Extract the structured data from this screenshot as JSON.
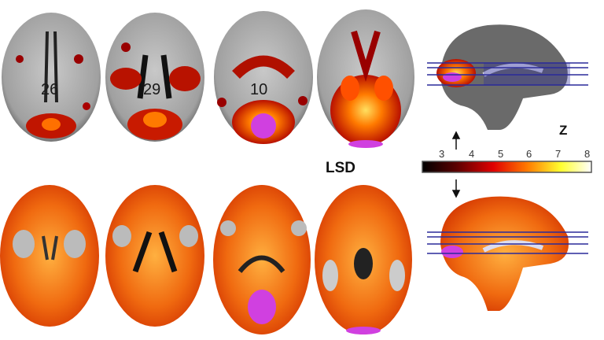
{
  "figure": {
    "condition_label": "LSD",
    "slice_numbers": [
      "26",
      "29",
      "10"
    ],
    "colorbar": {
      "label": "Z",
      "ticks": [
        "3",
        "4",
        "5",
        "6",
        "7",
        "8"
      ],
      "range": [
        2,
        8
      ],
      "colors": [
        "#000000",
        "#5a0000",
        "#e00000",
        "#ff7a00",
        "#ffff30",
        "#ffffff"
      ]
    },
    "colors": {
      "brain_gray": "#a8a8a8",
      "activation_red": "#c81a00",
      "activation_orange": "#f07a10",
      "overlap_magenta": "#d040e0",
      "slice_lines": "#2a2a9a"
    }
  }
}
